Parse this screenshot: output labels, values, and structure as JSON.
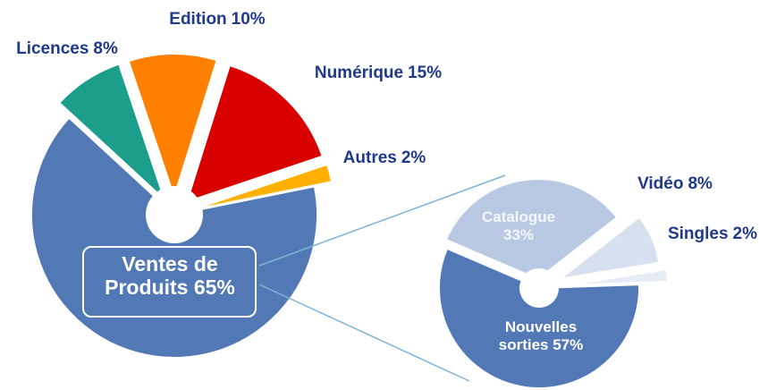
{
  "chart_data": [
    {
      "type": "pie",
      "categories": [
        "Ventes de Produits",
        "Licences",
        "Edition",
        "Numérique",
        "Autres"
      ],
      "values": [
        65,
        8,
        10,
        15,
        2
      ],
      "value_labels": [
        "65%",
        "8%",
        "10%",
        "15%",
        "2%"
      ],
      "colors": [
        "#5279b6",
        "#1b9e8a",
        "#ff8000",
        "#d90000",
        "#ffb000"
      ]
    },
    {
      "type": "pie",
      "categories": [
        "Nouvelles sorties",
        "Catalogue",
        "Vidéo",
        "Singles"
      ],
      "values": [
        57,
        33,
        8,
        2
      ],
      "value_labels": [
        "57%",
        "33%",
        "8%",
        "2%"
      ],
      "colors": [
        "#5279b6",
        "#b9c9e3",
        "#d7e0ef",
        "#e6ecf6"
      ]
    }
  ]
}
